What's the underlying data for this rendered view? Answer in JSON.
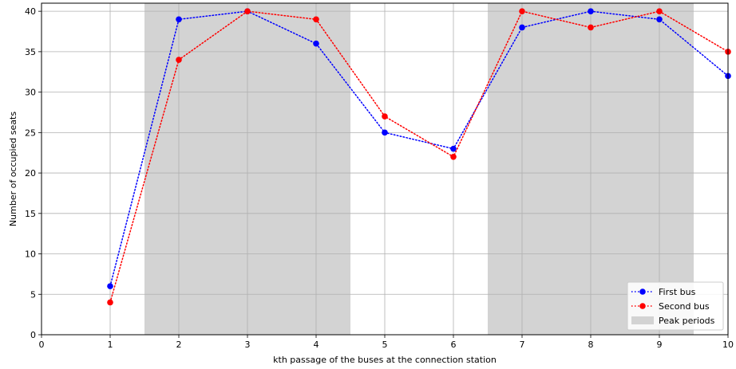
{
  "chart_data": {
    "type": "line",
    "title": "",
    "xlabel": "kth passage of the buses at the connection station",
    "ylabel": "Number of occupied seats",
    "xlim": [
      0,
      10
    ],
    "ylim": [
      0,
      41
    ],
    "xticks": [
      0,
      1,
      2,
      3,
      4,
      5,
      6,
      7,
      8,
      9,
      10
    ],
    "yticks": [
      0,
      5,
      10,
      15,
      20,
      25,
      30,
      35,
      40
    ],
    "grid": true,
    "legend_position": "bottom-right",
    "x": [
      1,
      2,
      3,
      4,
      5,
      6,
      7,
      8,
      9,
      10
    ],
    "series": [
      {
        "name": "First bus",
        "color": "#0000ff",
        "line_style": "dotted",
        "marker": "circle",
        "values": [
          6,
          39,
          40,
          36,
          25,
          23,
          38,
          40,
          39,
          32
        ]
      },
      {
        "name": "Second bus",
        "color": "#ff0000",
        "line_style": "dotted",
        "marker": "circle",
        "values": [
          4,
          34,
          40,
          39,
          27,
          22,
          40,
          38,
          40,
          35
        ]
      }
    ],
    "shaded_regions": {
      "name": "Peak periods",
      "color": "#d3d3d3",
      "ranges": [
        [
          1.5,
          4.5
        ],
        [
          6.5,
          9.5
        ]
      ]
    }
  }
}
